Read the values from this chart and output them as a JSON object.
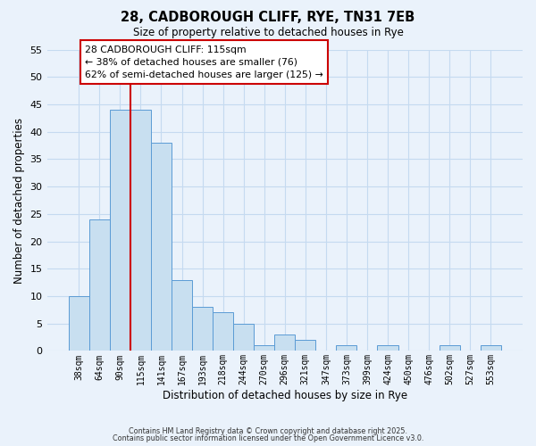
{
  "title": "28, CADBOROUGH CLIFF, RYE, TN31 7EB",
  "subtitle": "Size of property relative to detached houses in Rye",
  "xlabel": "Distribution of detached houses by size in Rye",
  "ylabel": "Number of detached properties",
  "bar_labels": [
    "38sqm",
    "64sqm",
    "90sqm",
    "115sqm",
    "141sqm",
    "167sqm",
    "193sqm",
    "218sqm",
    "244sqm",
    "270sqm",
    "296sqm",
    "321sqm",
    "347sqm",
    "373sqm",
    "399sqm",
    "424sqm",
    "450sqm",
    "476sqm",
    "502sqm",
    "527sqm",
    "553sqm"
  ],
  "bar_values": [
    10,
    24,
    44,
    44,
    38,
    13,
    8,
    7,
    5,
    1,
    3,
    2,
    0,
    1,
    0,
    1,
    0,
    0,
    1,
    0,
    1
  ],
  "bar_color": "#c8dff0",
  "bar_edge_color": "#5b9bd5",
  "grid_color": "#c5daf0",
  "vline_index": 3,
  "vline_color": "#cc0000",
  "annotation_title": "28 CADBOROUGH CLIFF: 115sqm",
  "annotation_line1": "← 38% of detached houses are smaller (76)",
  "annotation_line2": "62% of semi-detached houses are larger (125) →",
  "annotation_box_color": "#ffffff",
  "annotation_box_edge": "#cc0000",
  "ylim": [
    0,
    55
  ],
  "yticks": [
    0,
    5,
    10,
    15,
    20,
    25,
    30,
    35,
    40,
    45,
    50,
    55
  ],
  "footnote1": "Contains HM Land Registry data © Crown copyright and database right 2025.",
  "footnote2": "Contains public sector information licensed under the Open Government Licence v3.0.",
  "bg_color": "#eaf2fb"
}
